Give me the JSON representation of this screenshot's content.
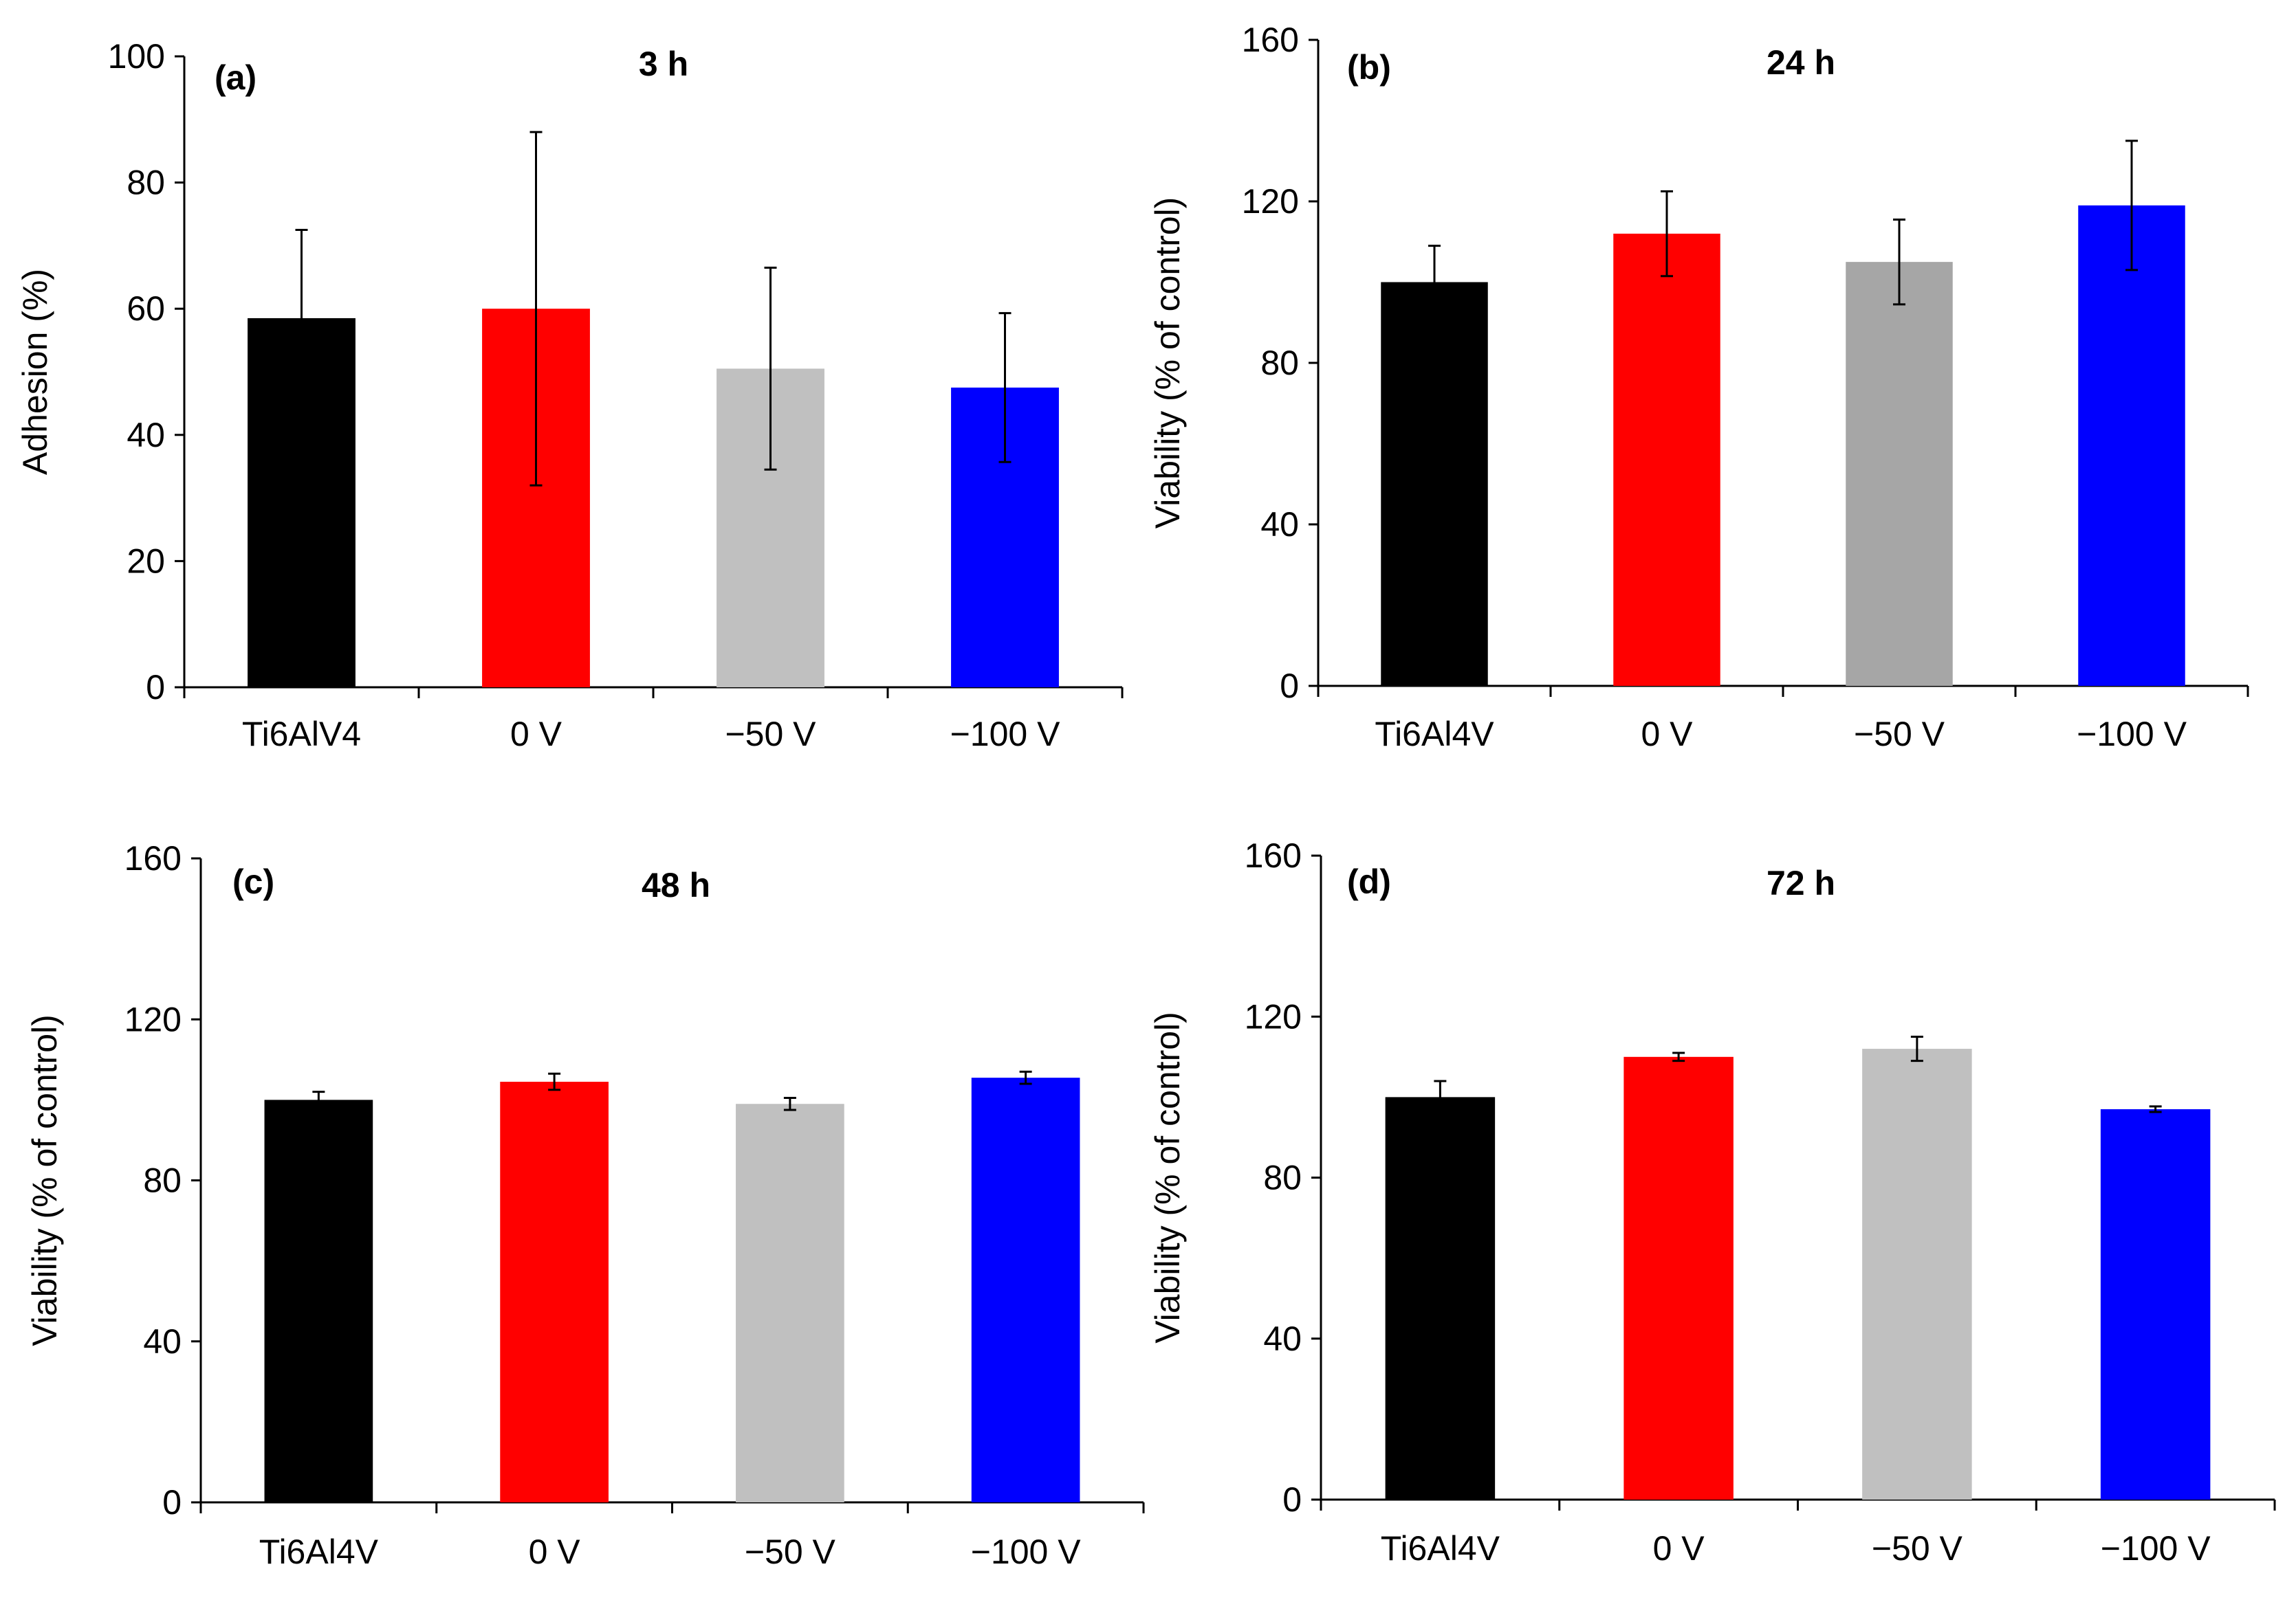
{
  "chart_data": [
    {
      "type": "bar",
      "panel_label": "(a)",
      "title": "3 h",
      "ylabel": "Adhesion (%)",
      "xlabel": "",
      "ylim": [
        0,
        100
      ],
      "yticks": [
        0,
        20,
        40,
        60,
        80,
        100
      ],
      "categories": [
        "Ti6AlV4",
        "0 V",
        "−50 V",
        "−100 V"
      ],
      "values": [
        58.5,
        60,
        50.5,
        47.5
      ],
      "errors": [
        14,
        28,
        16,
        11.8
      ],
      "colors": [
        "#000000",
        "#ff0000",
        "#c0c0c0",
        "#0000ff"
      ],
      "grid": false
    },
    {
      "type": "bar",
      "panel_label": "(b)",
      "title": "24 h",
      "ylabel": "Viability (% of control)",
      "xlabel": "",
      "ylim": [
        0,
        160
      ],
      "yticks": [
        0,
        40,
        80,
        120,
        160
      ],
      "categories": [
        "Ti6Al4V",
        "0 V",
        "−50 V",
        "−100 V"
      ],
      "values": [
        100,
        112,
        105,
        119
      ],
      "errors": [
        9,
        10.5,
        10.5,
        16
      ],
      "colors": [
        "#000000",
        "#ff0000",
        "#a6a6a6",
        "#0000ff"
      ],
      "grid": false
    },
    {
      "type": "bar",
      "panel_label": "(c)",
      "title": "48 h",
      "ylabel": "Viability (% of control)",
      "xlabel": "",
      "ylim": [
        0,
        160
      ],
      "yticks": [
        0,
        40,
        80,
        120,
        160
      ],
      "categories": [
        "Ti6Al4V",
        "0 V",
        "−50 V",
        "−100 V"
      ],
      "values": [
        100,
        104.5,
        99,
        105.5
      ],
      "errors": [
        2,
        2,
        1.5,
        1.5
      ],
      "colors": [
        "#000000",
        "#ff0000",
        "#c0c0c0",
        "#0000ff"
      ],
      "grid": false
    },
    {
      "type": "bar",
      "panel_label": "(d)",
      "title": "72 h",
      "ylabel": "Viability (% of control)",
      "xlabel": "",
      "ylim": [
        0,
        160
      ],
      "yticks": [
        0,
        40,
        80,
        120,
        160
      ],
      "categories": [
        "Ti6Al4V",
        "0 V",
        "−50 V",
        "−100 V"
      ],
      "values": [
        100,
        110,
        112,
        97
      ],
      "errors": [
        4,
        1,
        3,
        0.7
      ],
      "colors": [
        "#000000",
        "#ff0000",
        "#c0c0c0",
        "#0000ff"
      ],
      "grid": false
    }
  ]
}
